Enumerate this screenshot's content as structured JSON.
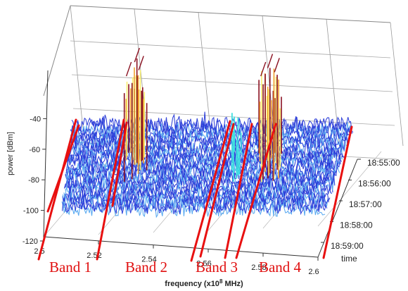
{
  "chart_data": {
    "type": "surface",
    "title": "",
    "xlabel_main": "frequency (x10",
    "xlabel_sup": "8",
    "xlabel_tail": " MHz)",
    "ylabel": "power [dBm]",
    "tlabel": "time",
    "x_ticks": [
      "2.5",
      "2.52",
      "2.54",
      "2.56",
      "2.58",
      "2.6"
    ],
    "x_tick_values": [
      2.5,
      2.52,
      2.54,
      2.56,
      2.58,
      2.6
    ],
    "xlim": [
      2.5,
      2.6
    ],
    "y_ticks": [
      "-40",
      "-60",
      "-80",
      "-100",
      "-120"
    ],
    "y_tick_values": [
      -40,
      -60,
      -80,
      -100,
      -120
    ],
    "ylim": [
      -120,
      -20
    ],
    "time_ticks": [
      "18:55:00",
      "18:56:00",
      "18:57:00",
      "18:58:00",
      "18:59:00"
    ],
    "noise_floor_dBm": -97,
    "grid": true,
    "bands": [
      {
        "label": "Band 1",
        "from": 2.5,
        "to": 2.508
      },
      {
        "label": "Band 2",
        "from": 2.521,
        "to": 2.53
      },
      {
        "label": "Band 3",
        "from": 2.559,
        "to": 2.567
      },
      {
        "label": "Band 4",
        "from": 2.57,
        "to": 2.6
      }
    ],
    "peaks": [
      {
        "x": 2.524,
        "peak_dBm": -33
      },
      {
        "x": 2.527,
        "peak_dBm": -26
      },
      {
        "x": 2.5285,
        "peak_dBm": -30
      },
      {
        "x": 2.563,
        "peak_dBm": -53
      },
      {
        "x": 2.573,
        "peak_dBm": -33
      },
      {
        "x": 2.5755,
        "peak_dBm": -29
      },
      {
        "x": 2.578,
        "peak_dBm": -31
      }
    ],
    "colors": {
      "noise": "#2a3cd8",
      "noise_light": "#55a8f0",
      "peak_hot": "#8a1020",
      "peak_warm": "#f0a030",
      "peak_yellow": "#f8f070",
      "cyan": "#40e0e0",
      "band_line": "#e81010",
      "band_text": "#e01010",
      "axis": "#333333"
    }
  }
}
